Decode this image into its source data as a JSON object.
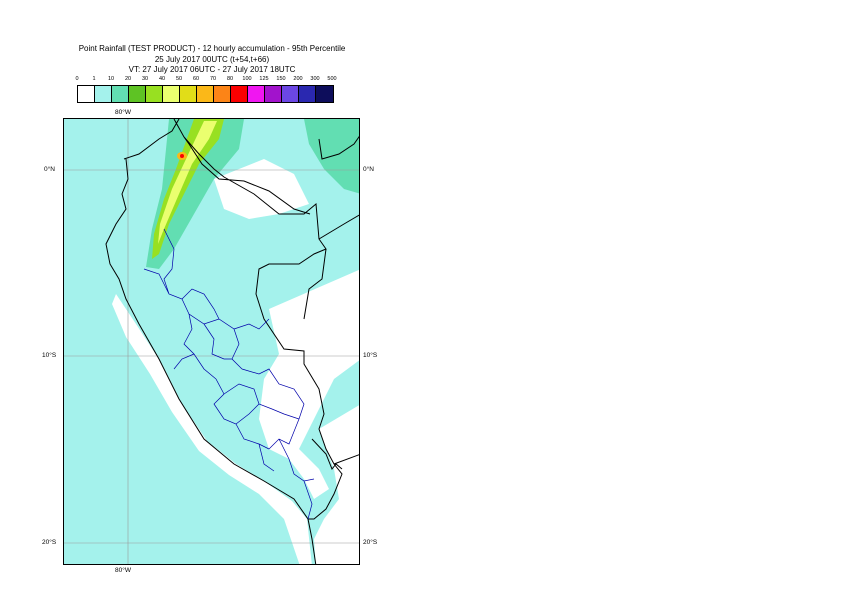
{
  "title": {
    "line1": "Point Rainfall (TEST PRODUCT) - 12 hourly accumulation - 95th Percentile",
    "line2": "25 July 2017 00UTC (t+54,t+66)",
    "line3": "VT: 27 July 2017 06UTC - 27 July 2017 18UTC"
  },
  "legend": {
    "labels": [
      "0",
      "1",
      "10",
      "20",
      "30",
      "40",
      "50",
      "60",
      "70",
      "80",
      "100",
      "125",
      "150",
      "200",
      "300",
      "500"
    ],
    "colors": [
      "#ffffff",
      "#a4f2ec",
      "#62deb2",
      "#5ec324",
      "#98e021",
      "#eaff6f",
      "#e1dd18",
      "#fbb818",
      "#fc8417",
      "#fb0000",
      "#f016f1",
      "#a213cc",
      "#6b47e4",
      "#2a28b0",
      "#0d0d5b"
    ]
  },
  "map": {
    "top_lon_label": "80°W",
    "bottom_lon_label": "80°W",
    "lat_labels": [
      {
        "left": "0°N",
        "right": "0°N"
      },
      {
        "left": "10°S",
        "right": "10°S"
      },
      {
        "left": "20°S",
        "right": "20°S"
      }
    ],
    "colors": {
      "ocean": "#a4f2ec",
      "land_light": "#a4f2ec",
      "land_mid": "#62deb2",
      "land_white": "#ffffff",
      "rain_green": "#98e021",
      "rain_yellow": "#eaff6f",
      "rain_orange": "#fbb818",
      "rain_red": "#fb0000",
      "border": "#000000",
      "regions": "#0000aa",
      "grid": "#999999"
    }
  }
}
